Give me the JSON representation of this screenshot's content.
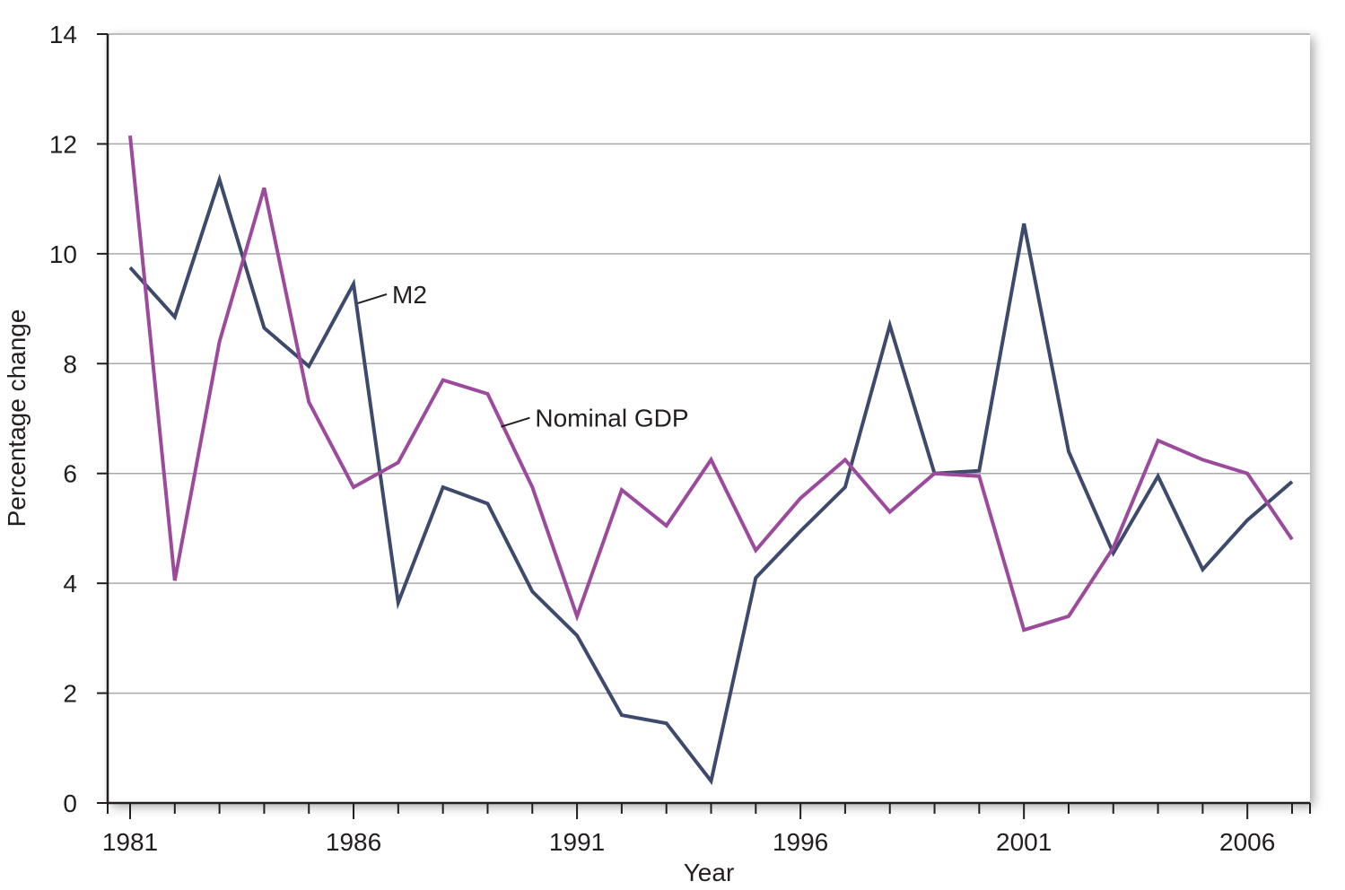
{
  "chart_data": {
    "type": "line",
    "title": "",
    "xlabel": "Year",
    "ylabel": "Percentage change",
    "xlim": [
      1981,
      2007
    ],
    "ylim": [
      0,
      14
    ],
    "x_ticks": [
      1981,
      1986,
      1991,
      1996,
      2001,
      2006
    ],
    "y_ticks": [
      0,
      2,
      4,
      6,
      8,
      10,
      12,
      14
    ],
    "grid": true,
    "legend": "none",
    "x": [
      1981,
      1982,
      1983,
      1984,
      1985,
      1986,
      1987,
      1988,
      1989,
      1990,
      1991,
      1992,
      1993,
      1994,
      1995,
      1996,
      1997,
      1998,
      1999,
      2000,
      2001,
      2002,
      2003,
      2004,
      2005,
      2006,
      2007
    ],
    "series": [
      {
        "name": "M2",
        "color": "#3e4a6b",
        "label_anchor_x": 1986.1,
        "label_anchor_y": 9.1,
        "values": [
          9.75,
          8.85,
          11.35,
          8.65,
          7.95,
          9.45,
          3.65,
          5.75,
          5.45,
          3.85,
          3.05,
          1.6,
          1.45,
          0.4,
          4.1,
          4.95,
          5.75,
          8.7,
          6.0,
          6.05,
          10.55,
          6.4,
          4.55,
          5.95,
          4.25,
          5.15,
          5.85
        ]
      },
      {
        "name": "Nominal GDP",
        "color": "#9b4a9c",
        "label_anchor_x": 1989.3,
        "label_anchor_y": 6.85,
        "values": [
          12.15,
          4.05,
          8.4,
          11.2,
          7.3,
          5.75,
          6.2,
          7.7,
          7.45,
          5.75,
          3.4,
          5.7,
          5.05,
          6.25,
          4.6,
          5.55,
          6.25,
          5.3,
          6.0,
          5.95,
          3.15,
          3.4,
          4.65,
          6.6,
          6.25,
          6.0,
          4.8
        ]
      }
    ]
  },
  "colors": {
    "axis": "#231f20",
    "grid": "#a7a9ac",
    "plot_background": "#ffffff"
  }
}
